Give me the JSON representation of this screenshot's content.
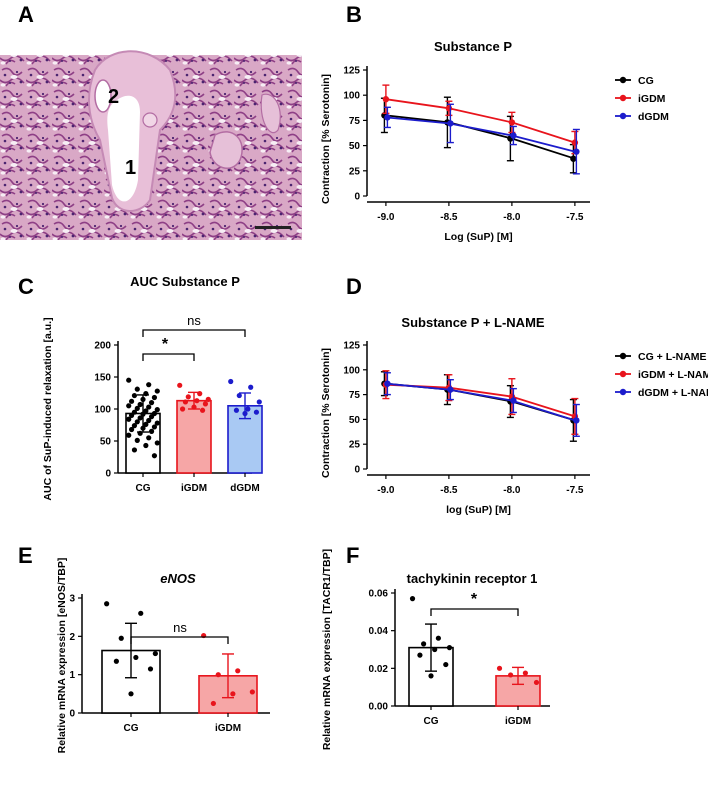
{
  "figure": {
    "panel_labels": [
      "A",
      "B",
      "C",
      "D",
      "E",
      "F"
    ],
    "histology": {
      "labels": [
        "2",
        "1"
      ]
    }
  },
  "chart_data": [
    {
      "id": "B",
      "type": "line",
      "title": "Substance P",
      "xlabel": "Log (SuP) [M]",
      "ylabel": "Contraction [% Serotonin]",
      "x": [
        -9.0,
        -8.5,
        -8.0,
        -7.5
      ],
      "x_tick_labels": [
        "-9.0",
        "-8.5",
        "-8.0",
        "-7.5"
      ],
      "xlim": [
        -9.15,
        -7.38
      ],
      "ylim": [
        0,
        125
      ],
      "y_ticks": [
        0,
        25,
        50,
        75,
        100,
        125
      ],
      "legend_position": "top-right",
      "series": [
        {
          "name": "CG",
          "color": "#000000",
          "values": [
            80,
            73,
            57,
            37
          ],
          "errors": [
            17,
            25,
            22,
            14
          ]
        },
        {
          "name": "iGDM",
          "color": "#e8141c",
          "values": [
            96,
            87,
            73,
            53
          ],
          "errors": [
            14,
            7,
            10,
            11
          ]
        },
        {
          "name": "dGDM",
          "color": "#1c1ccc",
          "values": [
            78,
            72,
            60,
            44
          ],
          "errors": [
            10,
            19,
            9,
            22
          ]
        }
      ]
    },
    {
      "id": "C",
      "type": "bar",
      "title": "AUC Substance P",
      "ylabel": "AUC of SuP-induced relaxation [a.u.]",
      "categories": [
        "CG",
        "iGDM",
        "dGDM"
      ],
      "values": [
        93,
        113,
        105
      ],
      "errors": [
        29,
        13,
        20
      ],
      "ylim": [
        0,
        200
      ],
      "y_ticks": [
        0,
        50,
        100,
        150,
        200
      ],
      "colors": {
        "CG": "#000000",
        "iGDM": "#e8141c",
        "dGDM": "#1c1ccc"
      },
      "fills": {
        "CG": "#ffffff",
        "iGDM": "#f6a6a6",
        "dGDM": "#a9c9f3"
      },
      "points": {
        "CG": [
          145,
          138,
          131,
          128,
          124,
          121,
          118,
          115,
          112,
          110,
          107,
          105,
          103,
          101,
          99,
          97,
          95,
          93,
          92,
          90,
          88,
          86,
          84,
          82,
          80,
          78,
          76,
          74,
          72,
          70,
          68,
          65,
          62,
          59,
          55,
          51,
          47,
          43,
          36,
          27
        ],
        "iGDM": [
          137,
          124,
          119,
          115,
          113,
          111,
          108,
          103,
          100,
          98
        ],
        "dGDM": [
          143,
          134,
          121,
          111,
          100,
          98,
          95,
          93
        ]
      },
      "significance": [
        {
          "from": "CG",
          "to": "iGDM",
          "label": "*"
        },
        {
          "from": "CG",
          "to": "dGDM",
          "label": "ns"
        }
      ]
    },
    {
      "id": "D",
      "type": "line",
      "title": "Substance P + L-NAME",
      "xlabel": "log (SuP) [M]",
      "ylabel": "Contraction [% Serotonin]",
      "x": [
        -9.0,
        -8.5,
        -8.0,
        -7.5
      ],
      "x_tick_labels": [
        "-9.0",
        "-8.5",
        "-8.0",
        "-7.5"
      ],
      "xlim": [
        -9.15,
        -7.38
      ],
      "ylim": [
        0,
        125
      ],
      "y_ticks": [
        0,
        25,
        50,
        75,
        100,
        125
      ],
      "legend_position": "top-right",
      "series": [
        {
          "name": "CG + L-NAME",
          "color": "#000000",
          "values": [
            86,
            80,
            68,
            49
          ],
          "errors": [
            12,
            15,
            16,
            21
          ]
        },
        {
          "name": "iGDM + L-NAME",
          "color": "#e8141c",
          "values": [
            85,
            82,
            73,
            53
          ],
          "errors": [
            14,
            13,
            18,
            18
          ]
        },
        {
          "name": "dGDM + L-NAME",
          "color": "#1c1ccc",
          "values": [
            86,
            80,
            69,
            49
          ],
          "errors": [
            11,
            10,
            12,
            16
          ]
        }
      ]
    },
    {
      "id": "E",
      "type": "bar",
      "title": "eNOS",
      "ylabel": "Relative mRNA expression [eNOS/TBP]",
      "categories": [
        "CG",
        "iGDM"
      ],
      "values": [
        1.63,
        0.97
      ],
      "errors": [
        0.71,
        0.57
      ],
      "ylim": [
        0,
        3
      ],
      "y_ticks": [
        0,
        1,
        2,
        3
      ],
      "colors": {
        "CG": "#000000",
        "iGDM": "#e8141c"
      },
      "fills": {
        "CG": "#ffffff",
        "iGDM": "#f6a6a6"
      },
      "points": {
        "CG": [
          2.85,
          2.6,
          1.95,
          1.55,
          1.45,
          1.35,
          1.15,
          0.5
        ],
        "iGDM": [
          2.02,
          1.1,
          1.0,
          0.55,
          0.5,
          0.25
        ]
      },
      "significance": [
        {
          "from": "CG",
          "to": "iGDM",
          "label": "ns"
        }
      ]
    },
    {
      "id": "F",
      "type": "bar",
      "title": "tachykinin receptor 1",
      "ylabel": "Relative mRNA expression [TACR1/TBP]",
      "categories": [
        "CG",
        "iGDM"
      ],
      "values": [
        0.031,
        0.016
      ],
      "errors": [
        0.0125,
        0.0045
      ],
      "ylim": [
        0,
        0.06
      ],
      "y_ticks": [
        0,
        0.02,
        0.04,
        0.06
      ],
      "y_tick_labels": [
        "0.00",
        "0.02",
        "0.04",
        "0.06"
      ],
      "colors": {
        "CG": "#000000",
        "iGDM": "#e8141c"
      },
      "fills": {
        "CG": "#ffffff",
        "iGDM": "#f6a6a6"
      },
      "points": {
        "CG": [
          0.057,
          0.036,
          0.033,
          0.031,
          0.03,
          0.027,
          0.022,
          0.016
        ],
        "iGDM": [
          0.02,
          0.0175,
          0.0165,
          0.0125
        ]
      },
      "significance": [
        {
          "from": "CG",
          "to": "iGDM",
          "label": "*"
        }
      ]
    }
  ]
}
